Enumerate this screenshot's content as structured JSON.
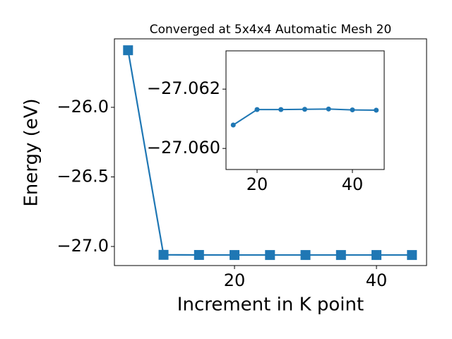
{
  "chart_data": [
    {
      "type": "line",
      "title": "Converged at 5x4x4 Automatic Mesh 20",
      "xlabel": "Increment in K point",
      "ylabel": "Energy (eV)",
      "x": [
        5,
        10,
        15,
        20,
        25,
        30,
        35,
        40,
        45
      ],
      "series": [
        {
          "color": "#1f77b4",
          "marker": "square",
          "values": [
            -25.59,
            -27.06,
            -27.0608,
            -27.0613,
            -27.0613,
            -27.0613,
            -27.0613,
            -27.0613,
            -27.0613
          ]
        }
      ],
      "xlim": [
        3.08,
        47.06
      ],
      "ylim": [
        -27.137,
        -25.508
      ],
      "xticks": [
        20,
        40
      ],
      "yticks": [
        {
          "value": -27.0,
          "label": "−27.0"
        },
        {
          "value": -26.5,
          "label": "−26.5"
        },
        {
          "value": -26.0,
          "label": "−26.0"
        }
      ]
    },
    {
      "type": "line",
      "x": [
        15,
        20,
        25,
        30,
        35,
        40,
        45
      ],
      "series": [
        {
          "color": "#1f77b4",
          "marker": "circle",
          "values": [
            -27.06079,
            -27.06131,
            -27.06131,
            -27.06132,
            -27.06133,
            -27.0613,
            -27.06129
          ]
        }
      ],
      "xlim": [
        13.48,
        46.67
      ],
      "ylim": [
        -27.05929,
        -27.06329
      ],
      "xticks": [
        20,
        40
      ],
      "yticks": [
        {
          "value": -27.06,
          "label": "−27.060"
        },
        {
          "value": -27.062,
          "label": "−27.062"
        }
      ]
    }
  ]
}
